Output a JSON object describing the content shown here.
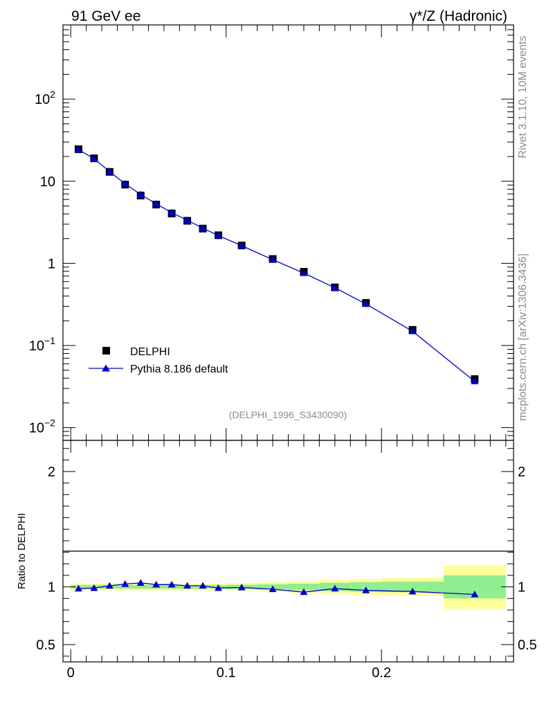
{
  "header": {
    "left": "91 GeV ee",
    "right": "γ*/Z (Hadronic)"
  },
  "side_labels": {
    "rivet": "Rivet 3.1.10,  10M events",
    "mcplots": "mcplots.cern.ch [arXiv:1306.3436]"
  },
  "chart_data": [
    {
      "type": "scatter",
      "title": "",
      "xlabel": "",
      "ylabel": "",
      "yscale": "log",
      "xlim": [
        -0.005,
        0.285
      ],
      "ylim": [
        0.007,
        800
      ],
      "y_ticks": [
        {
          "value": 0.01,
          "base": "10",
          "exp": "−2"
        },
        {
          "value": 0.1,
          "base": "10",
          "exp": "−1"
        },
        {
          "value": 1,
          "base": "1",
          "exp": ""
        },
        {
          "value": 10,
          "base": "10",
          "exp": ""
        },
        {
          "value": 100,
          "base": "10",
          "exp": "2"
        }
      ],
      "watermark": "(DELPHI_1996_S3430090)",
      "legend_position": "bottom-left",
      "x": [
        0.005,
        0.015,
        0.025,
        0.035,
        0.045,
        0.055,
        0.065,
        0.075,
        0.085,
        0.095,
        0.11,
        0.13,
        0.15,
        0.17,
        0.19,
        0.22,
        0.26
      ],
      "series": [
        {
          "name": "DELPHI",
          "marker": "square",
          "color": "#000000",
          "values": [
            24.5,
            19.0,
            13.0,
            9.1,
            6.7,
            5.2,
            4.05,
            3.3,
            2.65,
            2.2,
            1.65,
            1.13,
            0.79,
            0.51,
            0.33,
            0.155,
            0.039
          ]
        },
        {
          "name": "Pythia 8.186 default",
          "marker": "triangle",
          "color": "#0000cc",
          "values": [
            24.2,
            18.8,
            13.1,
            9.3,
            6.9,
            5.3,
            4.15,
            3.35,
            2.68,
            2.18,
            1.64,
            1.11,
            0.76,
            0.505,
            0.32,
            0.149,
            0.0365
          ]
        }
      ]
    },
    {
      "type": "line",
      "title": "",
      "xlabel": "",
      "ylabel": "Ratio to DELPHI",
      "xlim": [
        -0.005,
        0.285
      ],
      "ylim": [
        0.35,
        2.27
      ],
      "x_ticks": [
        {
          "value": 0,
          "label": "0"
        },
        {
          "value": 0.1,
          "label": "0.1"
        },
        {
          "value": 0.2,
          "label": "0.2"
        }
      ],
      "y_ticks": [
        {
          "value": 0.5,
          "label": "0.5"
        },
        {
          "value": 1,
          "label": "1"
        },
        {
          "value": 2,
          "label": "2"
        }
      ],
      "bands": {
        "edges": [
          0,
          0.01,
          0.02,
          0.03,
          0.04,
          0.05,
          0.06,
          0.07,
          0.08,
          0.09,
          0.1,
          0.12,
          0.14,
          0.16,
          0.18,
          0.2,
          0.24,
          0.28
        ],
        "inner_color": "#90ee90",
        "outer_color": "#ffff99",
        "inner": [
          0.015,
          0.015,
          0.015,
          0.015,
          0.015,
          0.015,
          0.015,
          0.015,
          0.015,
          0.015,
          0.018,
          0.022,
          0.028,
          0.035,
          0.042,
          0.045,
          0.1
        ],
        "outer": [
          0.03,
          0.03,
          0.03,
          0.03,
          0.03,
          0.03,
          0.03,
          0.03,
          0.03,
          0.03,
          0.032,
          0.04,
          0.05,
          0.06,
          0.07,
          0.08,
          0.19
        ]
      },
      "series": [
        {
          "name": "Pythia 8.186 default",
          "marker": "triangle",
          "color": "#0000cc",
          "x": [
            0.005,
            0.015,
            0.025,
            0.035,
            0.045,
            0.055,
            0.065,
            0.075,
            0.085,
            0.095,
            0.11,
            0.13,
            0.15,
            0.17,
            0.19,
            0.22,
            0.26
          ],
          "values": [
            0.985,
            0.99,
            1.01,
            1.025,
            1.035,
            1.02,
            1.02,
            1.01,
            1.01,
            0.99,
            0.995,
            0.98,
            0.955,
            0.985,
            0.97,
            0.96,
            0.935
          ]
        }
      ]
    }
  ]
}
